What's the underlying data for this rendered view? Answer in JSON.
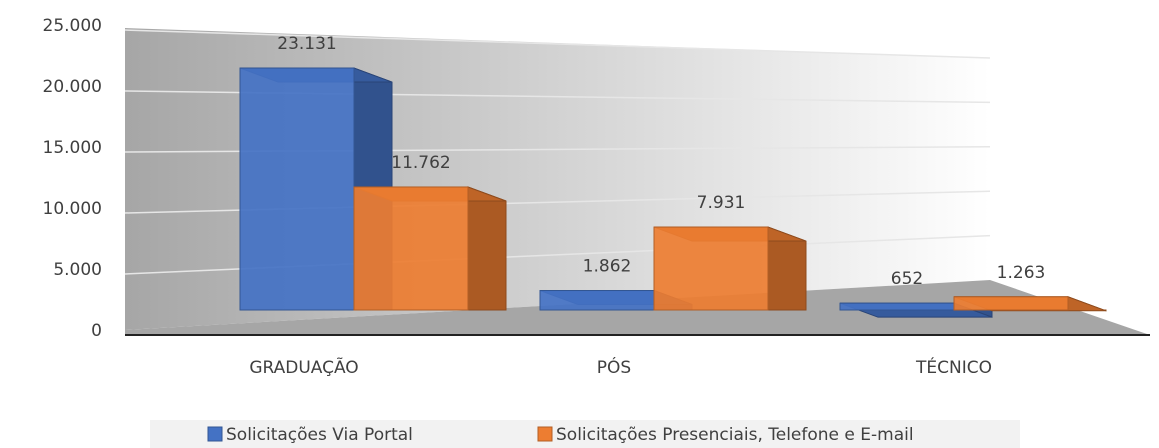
{
  "chart_data": {
    "type": "bar3d",
    "categories": [
      "GRADUAÇÃO",
      "PÓS",
      "TÉCNICO"
    ],
    "series": [
      {
        "name": "Solicitações Via Portal",
        "color": "#4472c4",
        "values": [
          23131,
          1862,
          652
        ],
        "value_labels": [
          "23.131",
          "1.862",
          "652"
        ]
      },
      {
        "name": "Solicitações Presenciais, Telefone e E-mail",
        "color": "#ed7d31",
        "values": [
          11762,
          7931,
          1263
        ],
        "value_labels": [
          "11.762",
          "7.931",
          "1.263"
        ]
      }
    ],
    "ylim": [
      0,
      25000
    ],
    "yticks": [
      0,
      {
        "value": 5000,
        "label": "5.000"
      },
      {
        "value": 10000,
        "label": "10.000"
      },
      {
        "value": 15000,
        "label": "15.000"
      },
      {
        "value": 20000,
        "label": "20.000"
      },
      {
        "value": 25000,
        "label": "25.000"
      }
    ],
    "grid": true,
    "legend": "bottom"
  }
}
